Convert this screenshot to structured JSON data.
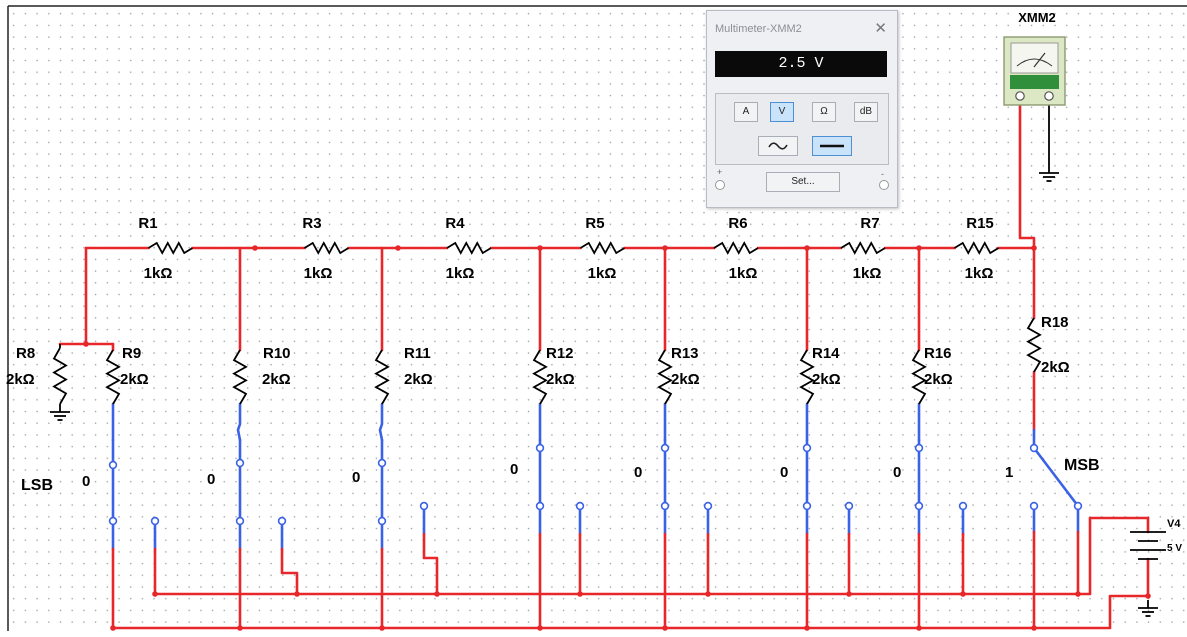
{
  "instrument_window": {
    "title": "Multimeter-XMM2",
    "reading": "2.5 V",
    "mode_buttons": [
      "A",
      "V",
      "Ω",
      "dB"
    ],
    "selected_mode": "V",
    "set_button": "Set...",
    "plus": "+",
    "minus": "-"
  },
  "instrument_symbol": {
    "name": "XMM2",
    "plus": "+",
    "minus": "-"
  },
  "series_resistors": [
    {
      "name": "R1",
      "value": "1kΩ"
    },
    {
      "name": "R3",
      "value": "1kΩ"
    },
    {
      "name": "R4",
      "value": "1kΩ"
    },
    {
      "name": "R5",
      "value": "1kΩ"
    },
    {
      "name": "R6",
      "value": "1kΩ"
    },
    {
      "name": "R7",
      "value": "1kΩ"
    },
    {
      "name": "R15",
      "value": "1kΩ"
    }
  ],
  "shunt_resistors": [
    {
      "name": "R8",
      "value": "2kΩ"
    },
    {
      "name": "R9",
      "value": "2kΩ"
    },
    {
      "name": "R10",
      "value": "2kΩ"
    },
    {
      "name": "R11",
      "value": "2kΩ"
    },
    {
      "name": "R12",
      "value": "2kΩ"
    },
    {
      "name": "R13",
      "value": "2kΩ"
    },
    {
      "name": "R14",
      "value": "2kΩ"
    },
    {
      "name": "R16",
      "value": "2kΩ"
    },
    {
      "name": "R18",
      "value": "2kΩ"
    }
  ],
  "bit_states": [
    "0",
    "0",
    "0",
    "0",
    "0",
    "0",
    "0",
    "1"
  ],
  "lsb_label": "LSB",
  "msb_label": "MSB",
  "source": {
    "name": "V4",
    "value": "5 V"
  }
}
